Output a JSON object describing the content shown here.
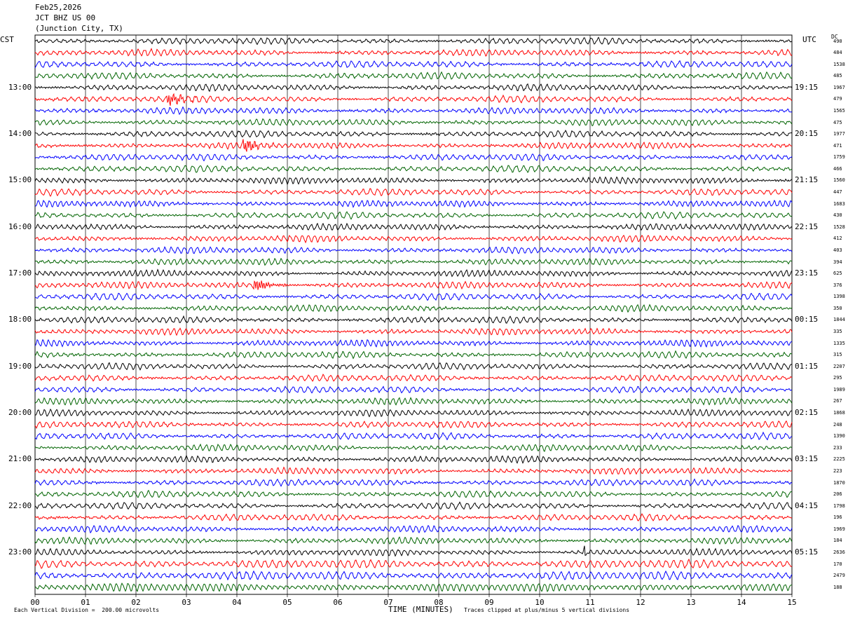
{
  "header": {
    "date": "Feb25,2026",
    "channel": "JCT BHZ US 00",
    "location": "(Junction City, TX)"
  },
  "left_tz": "CST",
  "right_tz": "UTC",
  "dc_label": "DC",
  "footer": {
    "scale": "Each Vertical Division =  200.00 microvolts",
    "xlabel": "TIME (MINUTES)",
    "clip_note": "Traces clipped at plus/minus 5 vertical divisions"
  },
  "colors": {
    "trace_cycle": [
      "#000000",
      "#ff0000",
      "#0000ff",
      "#006400"
    ],
    "grid": "#000000"
  },
  "chart_data": {
    "type": "line",
    "title": "JCT BHZ US 00",
    "xlabel": "TIME (MINUTES)",
    "ylabel": "",
    "x_ticks": [
      "00",
      "01",
      "02",
      "03",
      "04",
      "05",
      "06",
      "07",
      "08",
      "09",
      "10",
      "11",
      "12",
      "13",
      "14",
      "15"
    ],
    "xlim": [
      0,
      15
    ],
    "trace_count": 48,
    "left_hour_labels": [
      "13:00",
      "14:00",
      "15:00",
      "16:00",
      "17:00",
      "18:00",
      "19:00",
      "20:00",
      "21:00",
      "22:00",
      "23:00"
    ],
    "right_hour_labels": [
      "19:15",
      "20:15",
      "21:15",
      "22:15",
      "23:15",
      "00:15",
      "01:15",
      "02:15",
      "03:15",
      "04:15",
      "05:15"
    ],
    "dc_offsets": [
      "490",
      "484",
      "1538",
      "485",
      "1967",
      "479",
      "1565",
      "475",
      "1977",
      "471",
      "1759",
      "466",
      "1560",
      "447",
      "1683",
      "430",
      "1528",
      "412",
      "403",
      "394",
      "625",
      "376",
      "1398",
      "350",
      "1844",
      "335",
      "1335",
      "315",
      "2207",
      "295",
      "1989",
      "267",
      "1868",
      "248",
      "1390",
      "233",
      "2225",
      "223",
      "1870",
      "206",
      "1798",
      "196",
      "1969",
      "184",
      "2636",
      "170",
      "2479",
      "188"
    ],
    "events": [
      {
        "trace": 5,
        "minute": 2.7,
        "note": "burst"
      },
      {
        "trace": 9,
        "minute": 4.2,
        "note": "burst"
      },
      {
        "trace": 21,
        "minute": 4.4,
        "note": "burst"
      },
      {
        "trace": 44,
        "minute": 10.9,
        "note": "spike"
      }
    ],
    "grid": true
  }
}
